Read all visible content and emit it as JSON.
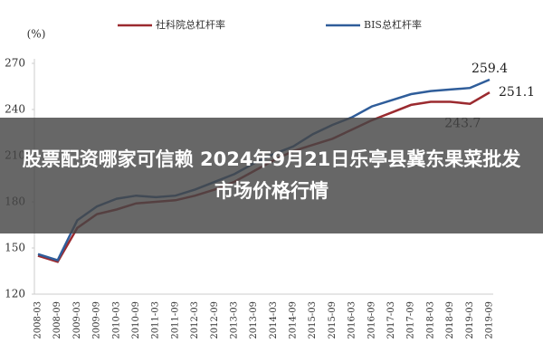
{
  "chart_data": {
    "type": "line",
    "unit_label": "(%)",
    "categories": [
      "2008-03",
      "2008-09",
      "2009-03",
      "2009-09",
      "2010-03",
      "2010-09",
      "2011-03",
      "2011-09",
      "2012-03",
      "2012-09",
      "2013-03",
      "2013-09",
      "2014-03",
      "2014-09",
      "2015-03",
      "2015-09",
      "2016-03",
      "2016-09",
      "2017-03",
      "2017-09",
      "2018-03",
      "2018-09",
      "2019-03",
      "2019-09"
    ],
    "series": [
      {
        "name": "社科院总杠杆率",
        "color": "#9b2a2f",
        "values": [
          145,
          141,
          163,
          172,
          175,
          179,
          180,
          181,
          184,
          188,
          193,
          200,
          207,
          213,
          217,
          221,
          227,
          233,
          238,
          243,
          245,
          245,
          243.7,
          251.1
        ],
        "value_labels": [
          null,
          null,
          null,
          null,
          null,
          null,
          null,
          null,
          null,
          null,
          null,
          null,
          null,
          null,
          null,
          null,
          null,
          null,
          null,
          null,
          null,
          null,
          "243.7",
          "251.1"
        ]
      },
      {
        "name": "BIS总杠杆率",
        "color": "#2f5d9a",
        "values": [
          146,
          142,
          168,
          177,
          182,
          184,
          183,
          184,
          188,
          193,
          198,
          205,
          211,
          216,
          224,
          230,
          235,
          242,
          246,
          250,
          252,
          253,
          254,
          259.4
        ],
        "value_labels": [
          null,
          null,
          null,
          null,
          null,
          null,
          null,
          null,
          null,
          null,
          null,
          null,
          null,
          null,
          null,
          null,
          null,
          null,
          null,
          null,
          null,
          null,
          null,
          "259.4"
        ]
      }
    ],
    "ylim": [
      120,
      270
    ],
    "yticks": [
      120,
      150,
      180,
      210,
      240,
      270
    ],
    "grid": false
  },
  "banner": {
    "text": "股票配资哪家可信赖 2024年9月21日乐亭县冀东果菜批发市场价格行情"
  }
}
